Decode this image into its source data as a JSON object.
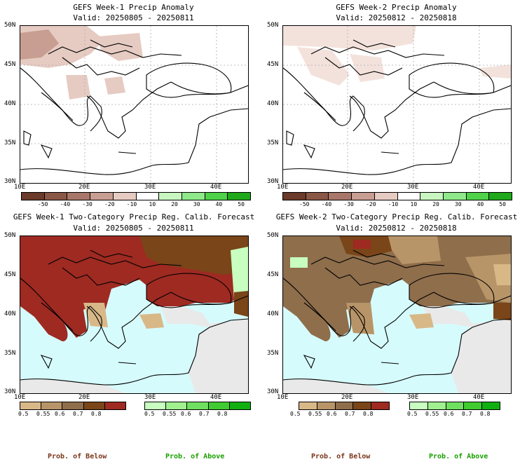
{
  "panels": [
    {
      "id": "p1",
      "title": "GEFS Week-1 Precip Anomaly",
      "valid": "Valid: 20250805 - 20250811"
    },
    {
      "id": "p2",
      "title": "GEFS Week-2 Precip Anomaly",
      "valid": "Valid: 20250812 - 20250818"
    },
    {
      "id": "p3",
      "title": "GEFS Week-1 Two-Category Precip Reg. Calib. Forecast",
      "valid": "Valid: 20250805 - 20250811"
    },
    {
      "id": "p4",
      "title": "GEFS Week-2 Two-Category Precip Reg. Calib. Forecast",
      "valid": "Valid: 20250812 - 20250818"
    }
  ],
  "lat_labels": [
    "50N",
    "45N",
    "40N",
    "35N",
    "30N"
  ],
  "lon_labels": [
    "10E",
    "20E",
    "30E",
    "40E"
  ],
  "anomaly_ticks": [
    "-50",
    "-40",
    "-30",
    "-20",
    "-10",
    "10",
    "20",
    "30",
    "40",
    "50"
  ],
  "anomaly_colors": [
    "#6b3a2a",
    "#8a5646",
    "#a8776a",
    "#c89e92",
    "#e6cbc2",
    "#ffffff",
    "#c8f5c0",
    "#8fe88a",
    "#4fd14a",
    "#1fa81a"
  ],
  "prob_ticks": [
    "0.5",
    "0.55",
    "0.6",
    "0.7",
    "0.8"
  ],
  "below_colors": [
    "#d9b888",
    "#b89568",
    "#8f6e4c",
    "#7a4518",
    "#9e2a22"
  ],
  "above_colors": [
    "#c8ffc0",
    "#a0f090",
    "#70e060",
    "#40cc30",
    "#10b010"
  ],
  "footer": {
    "below": "Prob. of Below",
    "above": "Prob. of Above"
  },
  "footer_colors": {
    "below": "#7a3518",
    "above": "#1aa000"
  }
}
